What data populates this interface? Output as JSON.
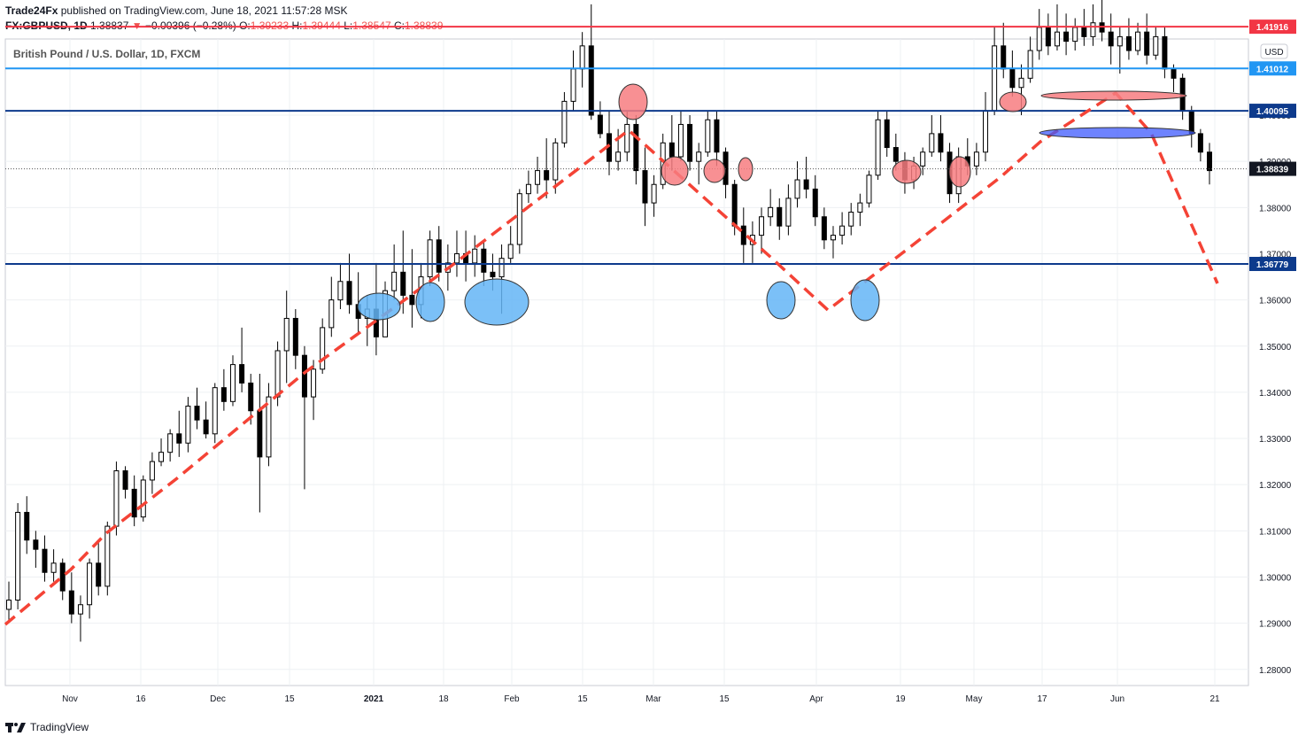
{
  "header": {
    "publisher": "Trade24Fx",
    "published_text": "published on TradingView.com, June 18, 2021 11:57:28 MSK",
    "symbol": "FX:GBPUSD, 1D",
    "last": "1.38837",
    "change": "−0.00396 (−0.28%)",
    "o_label": "O:",
    "o": "1.39233",
    "h_label": "H:",
    "h": "1.39444",
    "l_label": "L:",
    "l": "1.38547",
    "c_label": "C:",
    "c": "1.38839"
  },
  "footer": {
    "brand": "TradingView"
  },
  "colors": {
    "red_level": "#f23645",
    "blue_level": "#2196f3",
    "navy_level": "#0d3a8c",
    "trend_dash": "#f44336",
    "red_marker": "#f77c80",
    "blue_marker": "#64b5f6"
  },
  "chart_data": {
    "type": "candlestick",
    "title": "British Pound / U.S. Dollar, 1D, FXCM",
    "currency_button": "USD",
    "ylim": [
      1.2765,
      1.4165
    ],
    "y_ticks": [
      "1.28000",
      "1.29000",
      "1.30000",
      "1.31000",
      "1.32000",
      "1.33000",
      "1.34000",
      "1.35000",
      "1.36000",
      "1.37000",
      "1.38000",
      "1.39000",
      "1.40000",
      "1.41000"
    ],
    "x_ticks": [
      "Nov",
      "16",
      "Dec",
      "15",
      "2021",
      "18",
      "Feb",
      "15",
      "Mar",
      "15",
      "Apr",
      "19",
      "May",
      "17",
      "Jun",
      "21"
    ],
    "horizontal_levels": [
      {
        "price": 1.41916,
        "label": "1.41916",
        "color": "#f23645"
      },
      {
        "price": 1.41012,
        "label": "1.41012",
        "color": "#2196f3"
      },
      {
        "price": 1.40095,
        "label": "1.40095",
        "color": "#0d3a8c"
      },
      {
        "price": 1.36779,
        "label": "1.36779",
        "color": "#0d3a8c"
      }
    ],
    "last_price": {
      "price": 1.38839,
      "label": "1.38839"
    },
    "series": [
      {
        "name": "GBPUSD",
        "ohlc": [
          [
            1.293,
            1.299,
            1.2905,
            1.295
          ],
          [
            1.295,
            1.316,
            1.293,
            1.314
          ],
          [
            1.314,
            1.3175,
            1.305,
            1.308
          ],
          [
            1.308,
            1.31,
            1.302,
            1.306
          ],
          [
            1.306,
            1.309,
            1.299,
            1.301
          ],
          [
            1.301,
            1.306,
            1.299,
            1.303
          ],
          [
            1.303,
            1.304,
            1.295,
            1.297
          ],
          [
            1.297,
            1.301,
            1.29,
            1.292
          ],
          [
            1.292,
            1.296,
            1.286,
            1.294
          ],
          [
            1.294,
            1.304,
            1.291,
            1.303
          ],
          [
            1.303,
            1.308,
            1.296,
            1.298
          ],
          [
            1.298,
            1.312,
            1.296,
            1.311
          ],
          [
            1.311,
            1.325,
            1.309,
            1.323
          ],
          [
            1.323,
            1.324,
            1.317,
            1.319
          ],
          [
            1.319,
            1.322,
            1.311,
            1.313
          ],
          [
            1.313,
            1.322,
            1.312,
            1.321
          ],
          [
            1.321,
            1.327,
            1.318,
            1.325
          ],
          [
            1.325,
            1.33,
            1.324,
            1.327
          ],
          [
            1.327,
            1.332,
            1.325,
            1.331
          ],
          [
            1.331,
            1.336,
            1.326,
            1.329
          ],
          [
            1.329,
            1.339,
            1.327,
            1.337
          ],
          [
            1.337,
            1.341,
            1.332,
            1.334
          ],
          [
            1.334,
            1.338,
            1.33,
            1.331
          ],
          [
            1.331,
            1.342,
            1.329,
            1.341
          ],
          [
            1.341,
            1.345,
            1.336,
            1.338
          ],
          [
            1.338,
            1.348,
            1.337,
            1.346
          ],
          [
            1.346,
            1.354,
            1.34,
            1.342
          ],
          [
            1.342,
            1.344,
            1.333,
            1.336
          ],
          [
            1.336,
            1.344,
            1.314,
            1.326
          ],
          [
            1.326,
            1.342,
            1.324,
            1.339
          ],
          [
            1.339,
            1.351,
            1.337,
            1.349
          ],
          [
            1.349,
            1.362,
            1.342,
            1.356
          ],
          [
            1.356,
            1.358,
            1.345,
            1.348
          ],
          [
            1.348,
            1.35,
            1.319,
            1.339
          ],
          [
            1.339,
            1.347,
            1.334,
            1.345
          ],
          [
            1.345,
            1.356,
            1.344,
            1.354
          ],
          [
            1.354,
            1.365,
            1.352,
            1.36
          ],
          [
            1.36,
            1.368,
            1.358,
            1.364
          ],
          [
            1.364,
            1.37,
            1.357,
            1.359
          ],
          [
            1.359,
            1.366,
            1.353,
            1.356
          ],
          [
            1.356,
            1.361,
            1.35,
            1.358
          ],
          [
            1.358,
            1.368,
            1.348,
            1.352
          ],
          [
            1.352,
            1.364,
            1.352,
            1.362
          ],
          [
            1.362,
            1.372,
            1.36,
            1.366
          ],
          [
            1.366,
            1.375,
            1.357,
            1.361
          ],
          [
            1.361,
            1.371,
            1.354,
            1.359
          ],
          [
            1.359,
            1.368,
            1.356,
            1.365
          ],
          [
            1.365,
            1.375,
            1.363,
            1.373
          ],
          [
            1.373,
            1.376,
            1.364,
            1.366
          ],
          [
            1.366,
            1.372,
            1.362,
            1.368
          ],
          [
            1.368,
            1.375,
            1.365,
            1.37
          ],
          [
            1.37,
            1.375,
            1.364,
            1.368
          ],
          [
            1.368,
            1.374,
            1.365,
            1.371
          ],
          [
            1.371,
            1.373,
            1.363,
            1.366
          ],
          [
            1.366,
            1.37,
            1.362,
            1.365
          ],
          [
            1.365,
            1.372,
            1.357,
            1.369
          ],
          [
            1.369,
            1.376,
            1.368,
            1.372
          ],
          [
            1.372,
            1.384,
            1.37,
            1.383
          ],
          [
            1.383,
            1.388,
            1.381,
            1.385
          ],
          [
            1.385,
            1.391,
            1.383,
            1.388
          ],
          [
            1.388,
            1.395,
            1.382,
            1.386
          ],
          [
            1.386,
            1.395,
            1.383,
            1.394
          ],
          [
            1.394,
            1.405,
            1.393,
            1.403
          ],
          [
            1.403,
            1.414,
            1.401,
            1.41
          ],
          [
            1.41,
            1.418,
            1.406,
            1.415
          ],
          [
            1.415,
            1.424,
            1.399,
            1.4
          ],
          [
            1.4,
            1.403,
            1.395,
            1.396
          ],
          [
            1.396,
            1.401,
            1.387,
            1.39
          ],
          [
            1.39,
            1.397,
            1.388,
            1.392
          ],
          [
            1.392,
            1.401,
            1.39,
            1.398
          ],
          [
            1.398,
            1.4,
            1.385,
            1.388
          ],
          [
            1.388,
            1.393,
            1.376,
            1.381
          ],
          [
            1.381,
            1.387,
            1.378,
            1.385
          ],
          [
            1.385,
            1.396,
            1.384,
            1.394
          ],
          [
            1.394,
            1.4,
            1.388,
            1.391
          ],
          [
            1.391,
            1.401,
            1.39,
            1.398
          ],
          [
            1.398,
            1.4,
            1.388,
            1.39
          ],
          [
            1.39,
            1.394,
            1.385,
            1.392
          ],
          [
            1.392,
            1.401,
            1.391,
            1.399
          ],
          [
            1.399,
            1.401,
            1.389,
            1.392
          ],
          [
            1.392,
            1.393,
            1.382,
            1.385
          ],
          [
            1.385,
            1.386,
            1.374,
            1.376
          ],
          [
            1.376,
            1.38,
            1.368,
            1.372
          ],
          [
            1.372,
            1.377,
            1.368,
            1.374
          ],
          [
            1.374,
            1.38,
            1.37,
            1.378
          ],
          [
            1.378,
            1.384,
            1.376,
            1.38
          ],
          [
            1.38,
            1.382,
            1.373,
            1.376
          ],
          [
            1.376,
            1.385,
            1.374,
            1.382
          ],
          [
            1.382,
            1.39,
            1.38,
            1.386
          ],
          [
            1.386,
            1.391,
            1.382,
            1.384
          ],
          [
            1.384,
            1.387,
            1.376,
            1.378
          ],
          [
            1.378,
            1.38,
            1.371,
            1.373
          ],
          [
            1.373,
            1.376,
            1.369,
            1.374
          ],
          [
            1.374,
            1.379,
            1.372,
            1.376
          ],
          [
            1.376,
            1.381,
            1.374,
            1.379
          ],
          [
            1.379,
            1.383,
            1.376,
            1.381
          ],
          [
            1.381,
            1.388,
            1.38,
            1.387
          ],
          [
            1.387,
            1.401,
            1.386,
            1.399
          ],
          [
            1.399,
            1.401,
            1.391,
            1.393
          ],
          [
            1.393,
            1.396,
            1.388,
            1.39
          ],
          [
            1.39,
            1.392,
            1.383,
            1.386
          ],
          [
            1.386,
            1.391,
            1.384,
            1.389
          ],
          [
            1.389,
            1.393,
            1.387,
            1.392
          ],
          [
            1.392,
            1.4,
            1.391,
            1.396
          ],
          [
            1.396,
            1.4,
            1.39,
            1.392
          ],
          [
            1.392,
            1.394,
            1.381,
            1.383
          ],
          [
            1.383,
            1.393,
            1.381,
            1.391
          ],
          [
            1.391,
            1.395,
            1.387,
            1.389
          ],
          [
            1.389,
            1.394,
            1.387,
            1.392
          ],
          [
            1.392,
            1.405,
            1.39,
            1.401
          ],
          [
            1.401,
            1.419,
            1.4,
            1.415
          ],
          [
            1.415,
            1.42,
            1.408,
            1.41
          ],
          [
            1.41,
            1.414,
            1.404,
            1.406
          ],
          [
            1.406,
            1.411,
            1.4,
            1.408
          ],
          [
            1.408,
            1.417,
            1.407,
            1.414
          ],
          [
            1.414,
            1.423,
            1.412,
            1.419
          ],
          [
            1.419,
            1.422,
            1.413,
            1.415
          ],
          [
            1.415,
            1.424,
            1.414,
            1.418
          ],
          [
            1.418,
            1.422,
            1.413,
            1.416
          ],
          [
            1.416,
            1.421,
            1.414,
            1.419
          ],
          [
            1.419,
            1.423,
            1.415,
            1.417
          ],
          [
            1.417,
            1.424,
            1.415,
            1.42
          ],
          [
            1.42,
            1.425,
            1.416,
            1.418
          ],
          [
            1.418,
            1.422,
            1.411,
            1.415
          ],
          [
            1.415,
            1.419,
            1.409,
            1.417
          ],
          [
            1.417,
            1.421,
            1.412,
            1.414
          ],
          [
            1.414,
            1.42,
            1.413,
            1.418
          ],
          [
            1.418,
            1.422,
            1.411,
            1.413
          ],
          [
            1.413,
            1.419,
            1.412,
            1.417
          ],
          [
            1.417,
            1.419,
            1.408,
            1.41
          ],
          [
            1.41,
            1.411,
            1.405,
            1.408
          ],
          [
            1.408,
            1.409,
            1.399,
            1.401
          ],
          [
            1.401,
            1.402,
            1.393,
            1.396
          ],
          [
            1.396,
            1.397,
            1.39,
            1.392
          ],
          [
            1.392,
            1.394,
            1.385,
            1.388
          ]
        ]
      }
    ]
  }
}
